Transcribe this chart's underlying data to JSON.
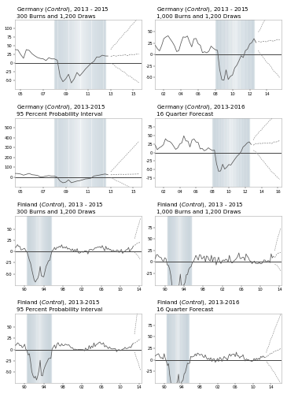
{
  "subplots": [
    {
      "title_line1": "Germany (Control), 2013 - 2015",
      "title_line2": "300 Burns and 1,200 Draws",
      "country": "germany",
      "variant": 0,
      "shade_start": 2008.0,
      "shade_end": 2012.5,
      "xmin": 2004.5,
      "xmax": 2015.75,
      "ymin": -75,
      "ymax": 125,
      "yticks": [
        -50,
        -25,
        0,
        25,
        50,
        75,
        100
      ],
      "xtick_years": [
        2005,
        2007,
        2009,
        2011,
        2013,
        2015
      ]
    },
    {
      "title_line1": "Germany (Control), 2013 - 2015",
      "title_line2": "1,000 Burns and 1,200 Draws",
      "country": "germany",
      "variant": 1,
      "shade_start": 2008.0,
      "shade_end": 2012.5,
      "xmin": 2001.0,
      "xmax": 2015.75,
      "ymin": -75,
      "ymax": 75,
      "yticks": [
        -50,
        -25,
        0,
        25,
        50
      ],
      "xtick_years": [
        2002,
        2004,
        2006,
        2008,
        2010,
        2012,
        2014
      ]
    },
    {
      "title_line1": "Germany (Control), 2013-2015",
      "title_line2": "95 Percent Probability Interval",
      "country": "germany",
      "variant": 2,
      "shade_start": 2008.0,
      "shade_end": 2012.5,
      "xmin": 2004.5,
      "xmax": 2015.75,
      "ymin": -100,
      "ymax": 600,
      "yticks": [
        0,
        100,
        200,
        300,
        400,
        500
      ],
      "xtick_years": [
        2005,
        2007,
        2009,
        2011,
        2013,
        2015
      ]
    },
    {
      "title_line1": "Germany (Control), 2013-2016",
      "title_line2": "16 Quarter Forecast",
      "country": "germany",
      "variant": 3,
      "shade_start": 2008.0,
      "shade_end": 2012.5,
      "xmin": 2001.0,
      "xmax": 2016.5,
      "ymin": -100,
      "ymax": 100,
      "yticks": [
        -75,
        -50,
        -25,
        0,
        25,
        50,
        75
      ],
      "xtick_years": [
        2002,
        2004,
        2006,
        2008,
        2010,
        2012,
        2014,
        2016
      ]
    },
    {
      "title_line1": "Finland (Control), 2013 - 2015",
      "title_line2": "300 Burns and 1,200 Draws",
      "country": "finland",
      "variant": 0,
      "shade_start": 1990.5,
      "shade_end": 1995.5,
      "xmin": 1988.0,
      "xmax": 2014.5,
      "ymin": -75,
      "ymax": 80,
      "yticks": [
        -50,
        -25,
        0,
        25,
        50
      ],
      "xtick_years": [
        1990,
        1994,
        1998,
        2002,
        2006,
        2010,
        2014
      ]
    },
    {
      "title_line1": "Finland (Control), 2013 - 2015",
      "title_line2": "1,000 Burns and 1,200 Draws",
      "country": "finland",
      "variant": 1,
      "shade_start": 1990.5,
      "shade_end": 1995.5,
      "xmin": 1988.0,
      "xmax": 2014.5,
      "ymin": -50,
      "ymax": 100,
      "yticks": [
        -25,
        0,
        25,
        50,
        75
      ],
      "xtick_years": [
        1990,
        1994,
        1998,
        2002,
        2006,
        2010,
        2014
      ]
    },
    {
      "title_line1": "Finland (Control), 2013-2015",
      "title_line2": "95 Percent Probability Interval",
      "country": "finland",
      "variant": 2,
      "shade_start": 1990.5,
      "shade_end": 1995.5,
      "xmin": 1988.0,
      "xmax": 2014.5,
      "ymin": -75,
      "ymax": 80,
      "yticks": [
        -50,
        -25,
        0,
        25,
        50
      ],
      "xtick_years": [
        1990,
        1994,
        1998,
        2002,
        2006,
        2010,
        2014
      ]
    },
    {
      "title_line1": "Finland (Control), 2013-2016",
      "title_line2": "16 Quarter Forecast",
      "country": "finland",
      "variant": 3,
      "shade_start": 1990.5,
      "shade_end": 1995.5,
      "xmin": 1988.0,
      "xmax": 2016.5,
      "ymin": -50,
      "ymax": 100,
      "yticks": [
        -25,
        0,
        25,
        50,
        75
      ],
      "xtick_years": [
        1990,
        1994,
        1998,
        2002,
        2006,
        2010,
        2014
      ]
    }
  ],
  "background_color": "#ffffff",
  "shade_color": "#c8d4dc",
  "line_color": "#555555",
  "forecast_color": "#888888",
  "zero_line_color": "#444444",
  "title_fontsize": 5.2,
  "tick_fontsize": 3.8
}
